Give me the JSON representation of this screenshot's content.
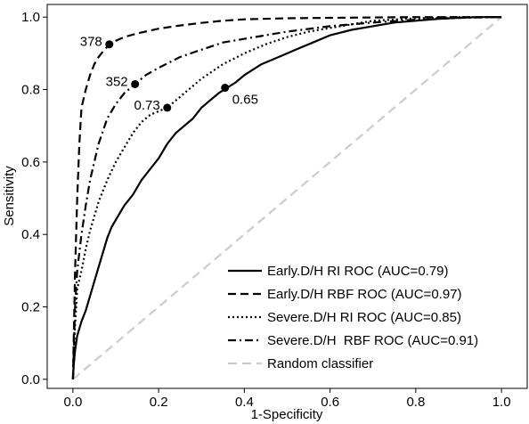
{
  "chart_data": {
    "type": "line",
    "title": "",
    "xlabel": "1-Specificity",
    "ylabel": "Sensitivity",
    "xlim": [
      -0.06,
      1.06
    ],
    "ylim": [
      -0.025,
      1.035
    ],
    "grid": false,
    "legend_position": "bottom-right",
    "x_ticks": [
      0.0,
      0.2,
      0.4,
      0.6,
      0.8,
      1.0
    ],
    "x_tick_labels": [
      "0.0",
      "0.2",
      "0.4",
      "0.6",
      "0.8",
      "1.0"
    ],
    "y_ticks": [
      0.0,
      0.2,
      0.4,
      0.6,
      0.8,
      1.0
    ],
    "y_tick_labels": [
      "0.0",
      "0.2",
      "0.4",
      "0.6",
      "0.8",
      "1.0"
    ],
    "series": [
      {
        "name": "Early.D/H RI ROC (AUC=0.79)",
        "style": "solid",
        "color": "#000000",
        "x": [
          0.0,
          0.002,
          0.005,
          0.01,
          0.02,
          0.03,
          0.04,
          0.05,
          0.06,
          0.07,
          0.08,
          0.09,
          0.1,
          0.12,
          0.14,
          0.16,
          0.18,
          0.2,
          0.22,
          0.24,
          0.26,
          0.28,
          0.3,
          0.32,
          0.34,
          0.36,
          0.38,
          0.4,
          0.44,
          0.48,
          0.52,
          0.56,
          0.6,
          0.65,
          0.7,
          0.75,
          0.8,
          0.85,
          0.9,
          0.95,
          1.0
        ],
        "y": [
          0.0,
          0.04,
          0.08,
          0.12,
          0.16,
          0.19,
          0.23,
          0.27,
          0.31,
          0.35,
          0.39,
          0.42,
          0.44,
          0.48,
          0.51,
          0.55,
          0.58,
          0.61,
          0.65,
          0.68,
          0.7,
          0.72,
          0.75,
          0.77,
          0.79,
          0.805,
          0.82,
          0.84,
          0.87,
          0.89,
          0.91,
          0.93,
          0.95,
          0.965,
          0.975,
          0.985,
          0.99,
          0.995,
          0.998,
          1.0,
          1.0
        ]
      },
      {
        "name": "Early.D/H RBF ROC (AUC=0.97)",
        "style": "dashed",
        "color": "#000000",
        "x": [
          0.0,
          0.005,
          0.01,
          0.015,
          0.02,
          0.03,
          0.04,
          0.05,
          0.06,
          0.07,
          0.085,
          0.1,
          0.12,
          0.15,
          0.2,
          0.25,
          0.3,
          0.35,
          0.4,
          0.5,
          0.6,
          0.7,
          0.8,
          0.9,
          1.0
        ],
        "y": [
          0.0,
          0.3,
          0.5,
          0.65,
          0.75,
          0.8,
          0.84,
          0.87,
          0.89,
          0.905,
          0.925,
          0.935,
          0.945,
          0.955,
          0.968,
          0.977,
          0.984,
          0.99,
          0.994,
          0.997,
          0.998,
          0.999,
          1.0,
          1.0,
          1.0
        ]
      },
      {
        "name": "Severe.D/H RI ROC (AUC=0.85)",
        "style": "dotted",
        "color": "#000000",
        "x": [
          0.0,
          0.005,
          0.01,
          0.02,
          0.03,
          0.04,
          0.05,
          0.06,
          0.08,
          0.1,
          0.12,
          0.14,
          0.16,
          0.18,
          0.2,
          0.22,
          0.25,
          0.28,
          0.3,
          0.35,
          0.4,
          0.45,
          0.5,
          0.55,
          0.6,
          0.65,
          0.7,
          0.8,
          0.9,
          1.0
        ],
        "y": [
          0.0,
          0.15,
          0.25,
          0.3,
          0.36,
          0.41,
          0.45,
          0.49,
          0.55,
          0.6,
          0.64,
          0.68,
          0.71,
          0.73,
          0.74,
          0.75,
          0.78,
          0.81,
          0.83,
          0.87,
          0.9,
          0.925,
          0.945,
          0.96,
          0.97,
          0.98,
          0.99,
          0.997,
          1.0,
          1.0
        ]
      },
      {
        "name": "Severe.D/H  RBF ROC (AUC=0.91)",
        "style": "dash-dot",
        "color": "#000000",
        "x": [
          0.0,
          0.005,
          0.01,
          0.02,
          0.03,
          0.04,
          0.05,
          0.06,
          0.08,
          0.1,
          0.12,
          0.145,
          0.17,
          0.2,
          0.25,
          0.3,
          0.35,
          0.4,
          0.5,
          0.6,
          0.7,
          0.8,
          0.9,
          1.0
        ],
        "y": [
          0.0,
          0.2,
          0.3,
          0.4,
          0.48,
          0.55,
          0.6,
          0.65,
          0.72,
          0.76,
          0.79,
          0.815,
          0.84,
          0.86,
          0.89,
          0.91,
          0.93,
          0.94,
          0.96,
          0.975,
          0.985,
          0.993,
          0.998,
          1.0
        ]
      },
      {
        "name": "Random classifier",
        "style": "dashed-light",
        "color": "#cccccc",
        "x": [
          0.0,
          1.0
        ],
        "y": [
          0.0,
          1.0
        ]
      }
    ],
    "annotations": [
      {
        "label": "378",
        "x": 0.085,
        "y": 0.925,
        "label_side": "left"
      },
      {
        "label": "352",
        "x": 0.145,
        "y": 0.815,
        "label_side": "left"
      },
      {
        "label": "0.73",
        "x": 0.22,
        "y": 0.75,
        "label_side": "left"
      },
      {
        "label": "0.65",
        "x": 0.355,
        "y": 0.805,
        "label_side": "below-right"
      }
    ]
  }
}
